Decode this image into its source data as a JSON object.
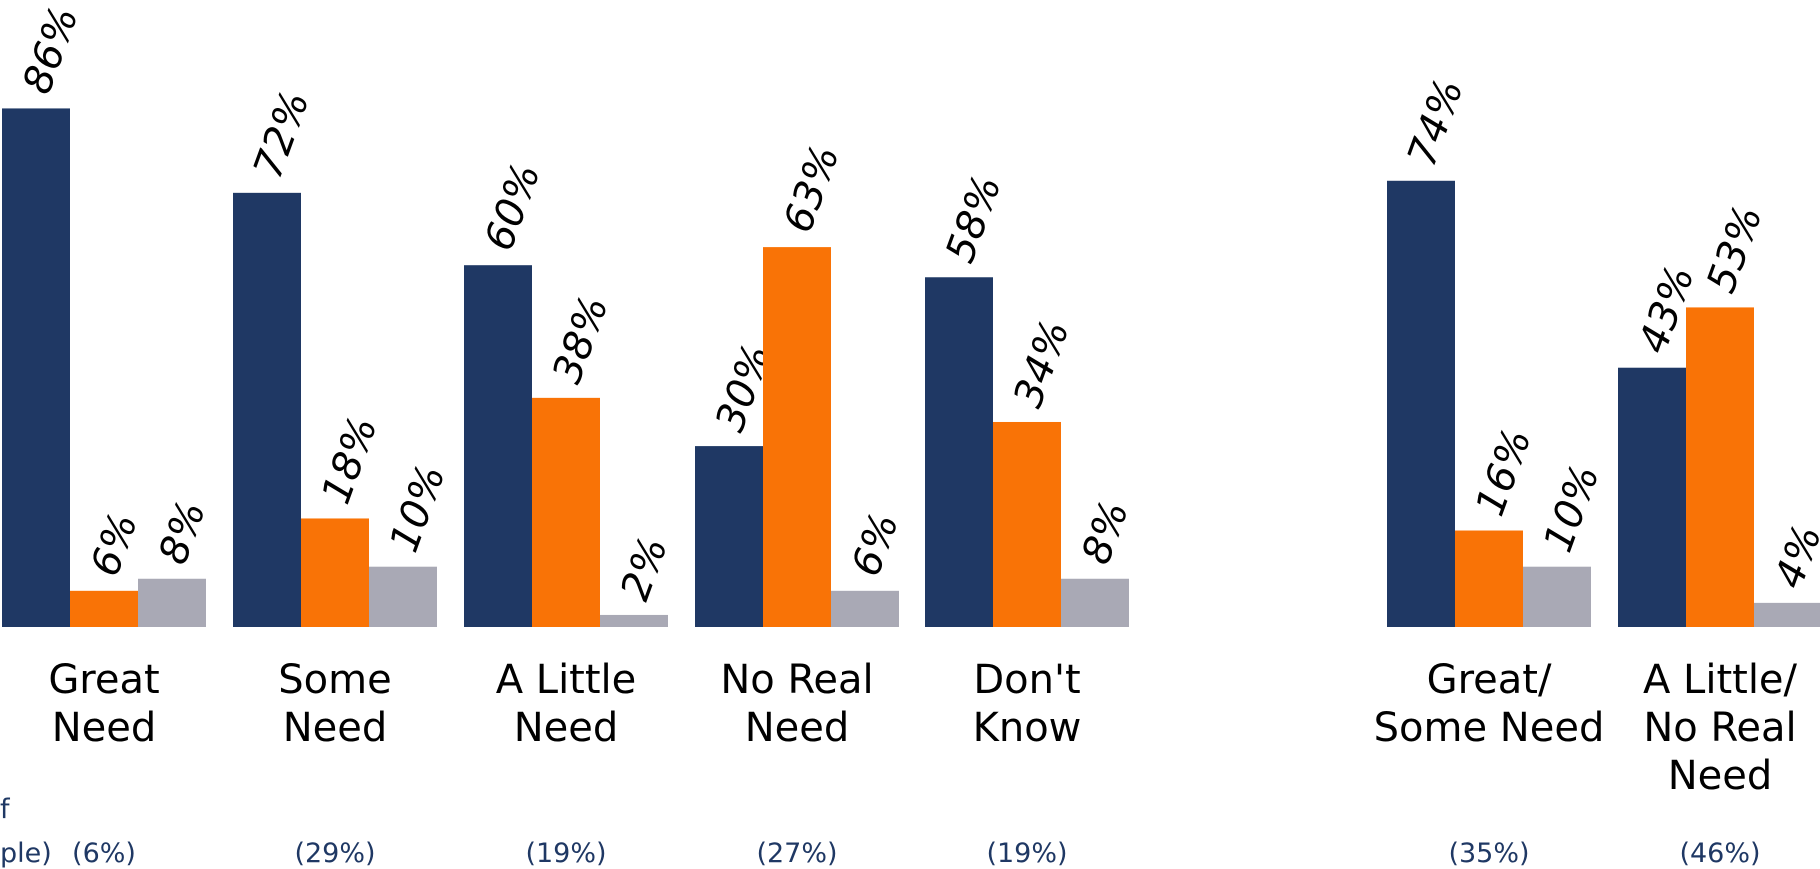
{
  "chart_data": {
    "type": "bar",
    "colors": [
      "#1f3864",
      "#f97306",
      "#a9a9b5"
    ],
    "side_label_lines": [
      "f",
      "ple)"
    ],
    "groups": [
      {
        "label_lines": [
          "Great",
          "Need"
        ],
        "share": "(6%)",
        "values": [
          86,
          6,
          8
        ],
        "labels": [
          "86%",
          "6%",
          "8%"
        ]
      },
      {
        "label_lines": [
          "Some",
          "Need"
        ],
        "share": "(29%)",
        "values": [
          72,
          18,
          10
        ],
        "labels": [
          "72%",
          "18%",
          "10%"
        ]
      },
      {
        "label_lines": [
          "A Little",
          "Need"
        ],
        "share": "(19%)",
        "values": [
          60,
          38,
          2
        ],
        "labels": [
          "60%",
          "38%",
          "2%"
        ]
      },
      {
        "label_lines": [
          "No Real",
          "Need"
        ],
        "share": "(27%)",
        "values": [
          30,
          63,
          6
        ],
        "labels": [
          "30%",
          "63%",
          "6%"
        ]
      },
      {
        "label_lines": [
          "Don't",
          "Know"
        ],
        "share": "(19%)",
        "values": [
          58,
          34,
          8
        ],
        "labels": [
          "58%",
          "34%",
          "8%"
        ]
      },
      {
        "label_lines": [
          "Great/",
          "Some Need"
        ],
        "share": "(35%)",
        "values": [
          74,
          16,
          10
        ],
        "labels": [
          "74%",
          "16%",
          "10%"
        ]
      },
      {
        "label_lines": [
          "A Little/",
          "No Real",
          "Need"
        ],
        "share": "(46%)",
        "values": [
          43,
          53,
          4
        ],
        "labels": [
          "43%",
          "53%",
          "4%"
        ]
      }
    ]
  }
}
